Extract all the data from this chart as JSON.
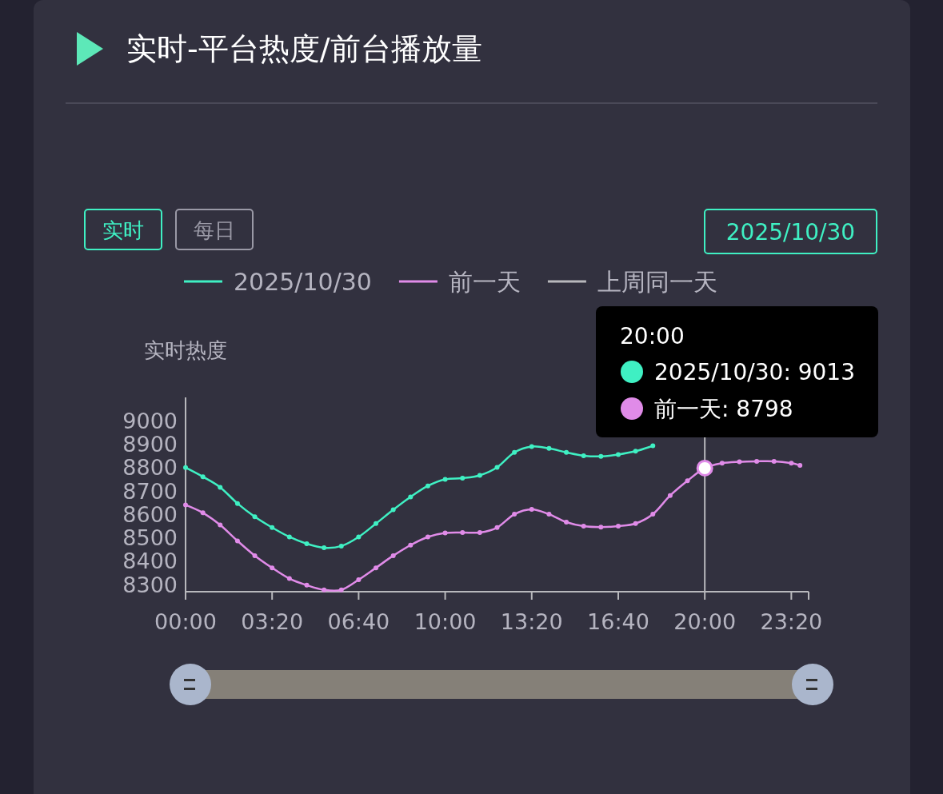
{
  "chart_data": {
    "type": "line",
    "title": "实时-平台热度/前台播放量",
    "ylabel": "实时热度",
    "annotations": [
      "实时",
      "每日",
      "2025/10/30",
      "20:00",
      "2025/10/30: 9013",
      "前一天: 8798"
    ],
    "x": [
      0,
      0.6667,
      1.3333,
      2,
      2.6667,
      3.3333,
      4,
      4.6667,
      5.3333,
      6,
      6.6667,
      7.3333,
      8,
      8.6667,
      9.3333,
      10,
      10.6667,
      11.3333,
      12,
      12.6667,
      13.3333,
      14,
      14.6667,
      15.3333,
      16,
      16.6667,
      17.3333,
      18,
      18.6667,
      19.3333,
      20,
      20.6667,
      21.3333,
      22,
      22.6667,
      23.3333,
      23.6667
    ],
    "series": [
      {
        "name": "2025/10/30",
        "color": "#3ff0c3",
        "values": [
          8800,
          8761,
          8716,
          8647,
          8590,
          8544,
          8504,
          8475,
          8458,
          8465,
          8504,
          8561,
          8620,
          8675,
          8722,
          8750,
          8755,
          8767,
          8801,
          8865,
          8890,
          8882,
          8865,
          8851,
          8848,
          8856,
          8870,
          8893,
          null,
          null,
          null,
          null,
          null,
          null,
          null,
          null,
          null
        ]
      },
      {
        "name": "前一天",
        "color": "#e08be8",
        "values": [
          8641,
          8607,
          8555,
          8487,
          8424,
          8372,
          8326,
          8298,
          8278,
          8278,
          8321,
          8372,
          8424,
          8469,
          8504,
          8521,
          8523,
          8523,
          8544,
          8601,
          8622,
          8601,
          8567,
          8550,
          8546,
          8550,
          8561,
          8601,
          8681,
          8744,
          8798,
          8819,
          8825,
          8827,
          8827,
          8819,
          8810
        ]
      },
      {
        "name": "上周同一天",
        "color": "#b8b8bc",
        "values": [
          null,
          null,
          null,
          null,
          null,
          null,
          null,
          null,
          null,
          null,
          null,
          null,
          null,
          null,
          null,
          null,
          null,
          null,
          null,
          null,
          null,
          null,
          null,
          null,
          null,
          null,
          null,
          null,
          null,
          null,
          null,
          null,
          null,
          null,
          null,
          null,
          null
        ]
      }
    ],
    "xlim": [
      0,
      24
    ],
    "ylim": [
      8270,
      9100
    ],
    "xticks": [
      {
        "value": 0,
        "label": "00:00"
      },
      {
        "value": 3.3333,
        "label": "03:20"
      },
      {
        "value": 6.6667,
        "label": "06:40"
      },
      {
        "value": 10,
        "label": "10:00"
      },
      {
        "value": 13.3333,
        "label": "13:20"
      },
      {
        "value": 16.6667,
        "label": "16:40"
      },
      {
        "value": 20,
        "label": "20:00"
      },
      {
        "value": 23.3333,
        "label": "23:20"
      }
    ],
    "yticks": [
      8300,
      8400,
      8500,
      8600,
      8700,
      8800,
      8900,
      9000
    ],
    "ref_lines": [
      {
        "axis": "x",
        "value": 20,
        "color": "#b8b8bc"
      }
    ],
    "legend": "top",
    "marker": "circle"
  }
}
